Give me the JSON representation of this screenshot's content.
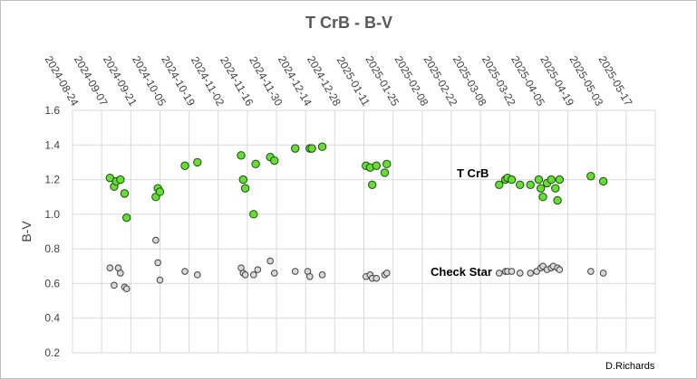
{
  "chart_data": {
    "type": "scatter",
    "title": "T CrB - B-V",
    "xlabel": "",
    "ylabel": "B-V",
    "ylim": [
      0.2,
      1.6
    ],
    "y_ticks": [
      "0.2",
      "0.4",
      "0.6",
      "0.8",
      "1.0",
      "1.2",
      "1.4",
      "1.6"
    ],
    "x_tick_labels": [
      "2024-08-24",
      "2024-09-07",
      "2024-09-21",
      "2024-10-05",
      "2024-10-19",
      "2024-11-02",
      "2024-11-16",
      "2024-11-30",
      "2024-12-14",
      "2024-12-28",
      "2025-01-11",
      "2025-01-25",
      "2025-02-08",
      "2025-02-22",
      "2025-03-08",
      "2025-03-22",
      "2025-04-05",
      "2025-04-19",
      "2025-05-03",
      "2025-05-17"
    ],
    "xlim": [
      "2024-08-24",
      "2025-05-31"
    ],
    "grid": true,
    "annotations": [
      "T CrB",
      "Check Star"
    ],
    "credit": "D.Richards",
    "series": [
      {
        "name": "T CrB",
        "color": "#66dd33",
        "points": [
          [
            "2024-09-11",
            1.21
          ],
          [
            "2024-09-13",
            1.16
          ],
          [
            "2024-09-14",
            1.19
          ],
          [
            "2024-09-16",
            1.2
          ],
          [
            "2024-09-18",
            1.12
          ],
          [
            "2024-09-19",
            0.98
          ],
          [
            "2024-10-03",
            1.1
          ],
          [
            "2024-10-04",
            1.15
          ],
          [
            "2024-10-05",
            1.13
          ],
          [
            "2024-10-17",
            1.28
          ],
          [
            "2024-10-23",
            1.3
          ],
          [
            "2024-11-13",
            1.34
          ],
          [
            "2024-11-14",
            1.2
          ],
          [
            "2024-11-15",
            1.15
          ],
          [
            "2024-11-19",
            1.0
          ],
          [
            "2024-11-20",
            1.29
          ],
          [
            "2024-11-27",
            1.33
          ],
          [
            "2024-11-29",
            1.31
          ],
          [
            "2024-12-09",
            1.38
          ],
          [
            "2024-12-16",
            1.38
          ],
          [
            "2024-12-17",
            1.38
          ],
          [
            "2024-12-22",
            1.39
          ],
          [
            "2025-01-12",
            1.28
          ],
          [
            "2025-01-14",
            1.27
          ],
          [
            "2025-01-15",
            1.17
          ],
          [
            "2025-01-17",
            1.28
          ],
          [
            "2025-01-21",
            1.24
          ],
          [
            "2025-01-22",
            1.29
          ],
          [
            "2025-03-17",
            1.17
          ],
          [
            "2025-03-20",
            1.2
          ],
          [
            "2025-03-21",
            1.21
          ],
          [
            "2025-03-23",
            1.2
          ],
          [
            "2025-03-27",
            1.17
          ],
          [
            "2025-04-01",
            1.17
          ],
          [
            "2025-04-05",
            1.2
          ],
          [
            "2025-04-06",
            1.15
          ],
          [
            "2025-04-07",
            1.1
          ],
          [
            "2025-04-09",
            1.18
          ],
          [
            "2025-04-11",
            1.2
          ],
          [
            "2025-04-13",
            1.15
          ],
          [
            "2025-04-14",
            1.08
          ],
          [
            "2025-04-15",
            1.2
          ],
          [
            "2025-04-30",
            1.22
          ],
          [
            "2025-05-06",
            1.19
          ]
        ]
      },
      {
        "name": "Check Star",
        "color": "#d9d9d9",
        "points": [
          [
            "2024-09-11",
            0.69
          ],
          [
            "2024-09-13",
            0.59
          ],
          [
            "2024-09-15",
            0.69
          ],
          [
            "2024-09-16",
            0.66
          ],
          [
            "2024-09-18",
            0.58
          ],
          [
            "2024-09-19",
            0.57
          ],
          [
            "2024-10-03",
            0.85
          ],
          [
            "2024-10-04",
            0.72
          ],
          [
            "2024-10-05",
            0.62
          ],
          [
            "2024-10-17",
            0.67
          ],
          [
            "2024-10-23",
            0.65
          ],
          [
            "2024-11-13",
            0.69
          ],
          [
            "2024-11-14",
            0.66
          ],
          [
            "2024-11-15",
            0.65
          ],
          [
            "2024-11-19",
            0.65
          ],
          [
            "2024-11-21",
            0.68
          ],
          [
            "2024-11-27",
            0.73
          ],
          [
            "2024-11-29",
            0.66
          ],
          [
            "2024-12-09",
            0.67
          ],
          [
            "2024-12-15",
            0.67
          ],
          [
            "2024-12-16",
            0.64
          ],
          [
            "2024-12-22",
            0.65
          ],
          [
            "2025-01-12",
            0.64
          ],
          [
            "2025-01-14",
            0.65
          ],
          [
            "2025-01-15",
            0.63
          ],
          [
            "2025-01-17",
            0.63
          ],
          [
            "2025-01-21",
            0.65
          ],
          [
            "2025-01-22",
            0.66
          ],
          [
            "2025-03-17",
            0.66
          ],
          [
            "2025-03-20",
            0.67
          ],
          [
            "2025-03-21",
            0.67
          ],
          [
            "2025-03-23",
            0.67
          ],
          [
            "2025-03-27",
            0.66
          ],
          [
            "2025-04-01",
            0.66
          ],
          [
            "2025-04-04",
            0.67
          ],
          [
            "2025-04-06",
            0.69
          ],
          [
            "2025-04-07",
            0.7
          ],
          [
            "2025-04-09",
            0.68
          ],
          [
            "2025-04-11",
            0.69
          ],
          [
            "2025-04-12",
            0.7
          ],
          [
            "2025-04-14",
            0.69
          ],
          [
            "2025-04-15",
            0.68
          ],
          [
            "2025-04-30",
            0.67
          ],
          [
            "2025-05-06",
            0.66
          ]
        ]
      }
    ]
  }
}
